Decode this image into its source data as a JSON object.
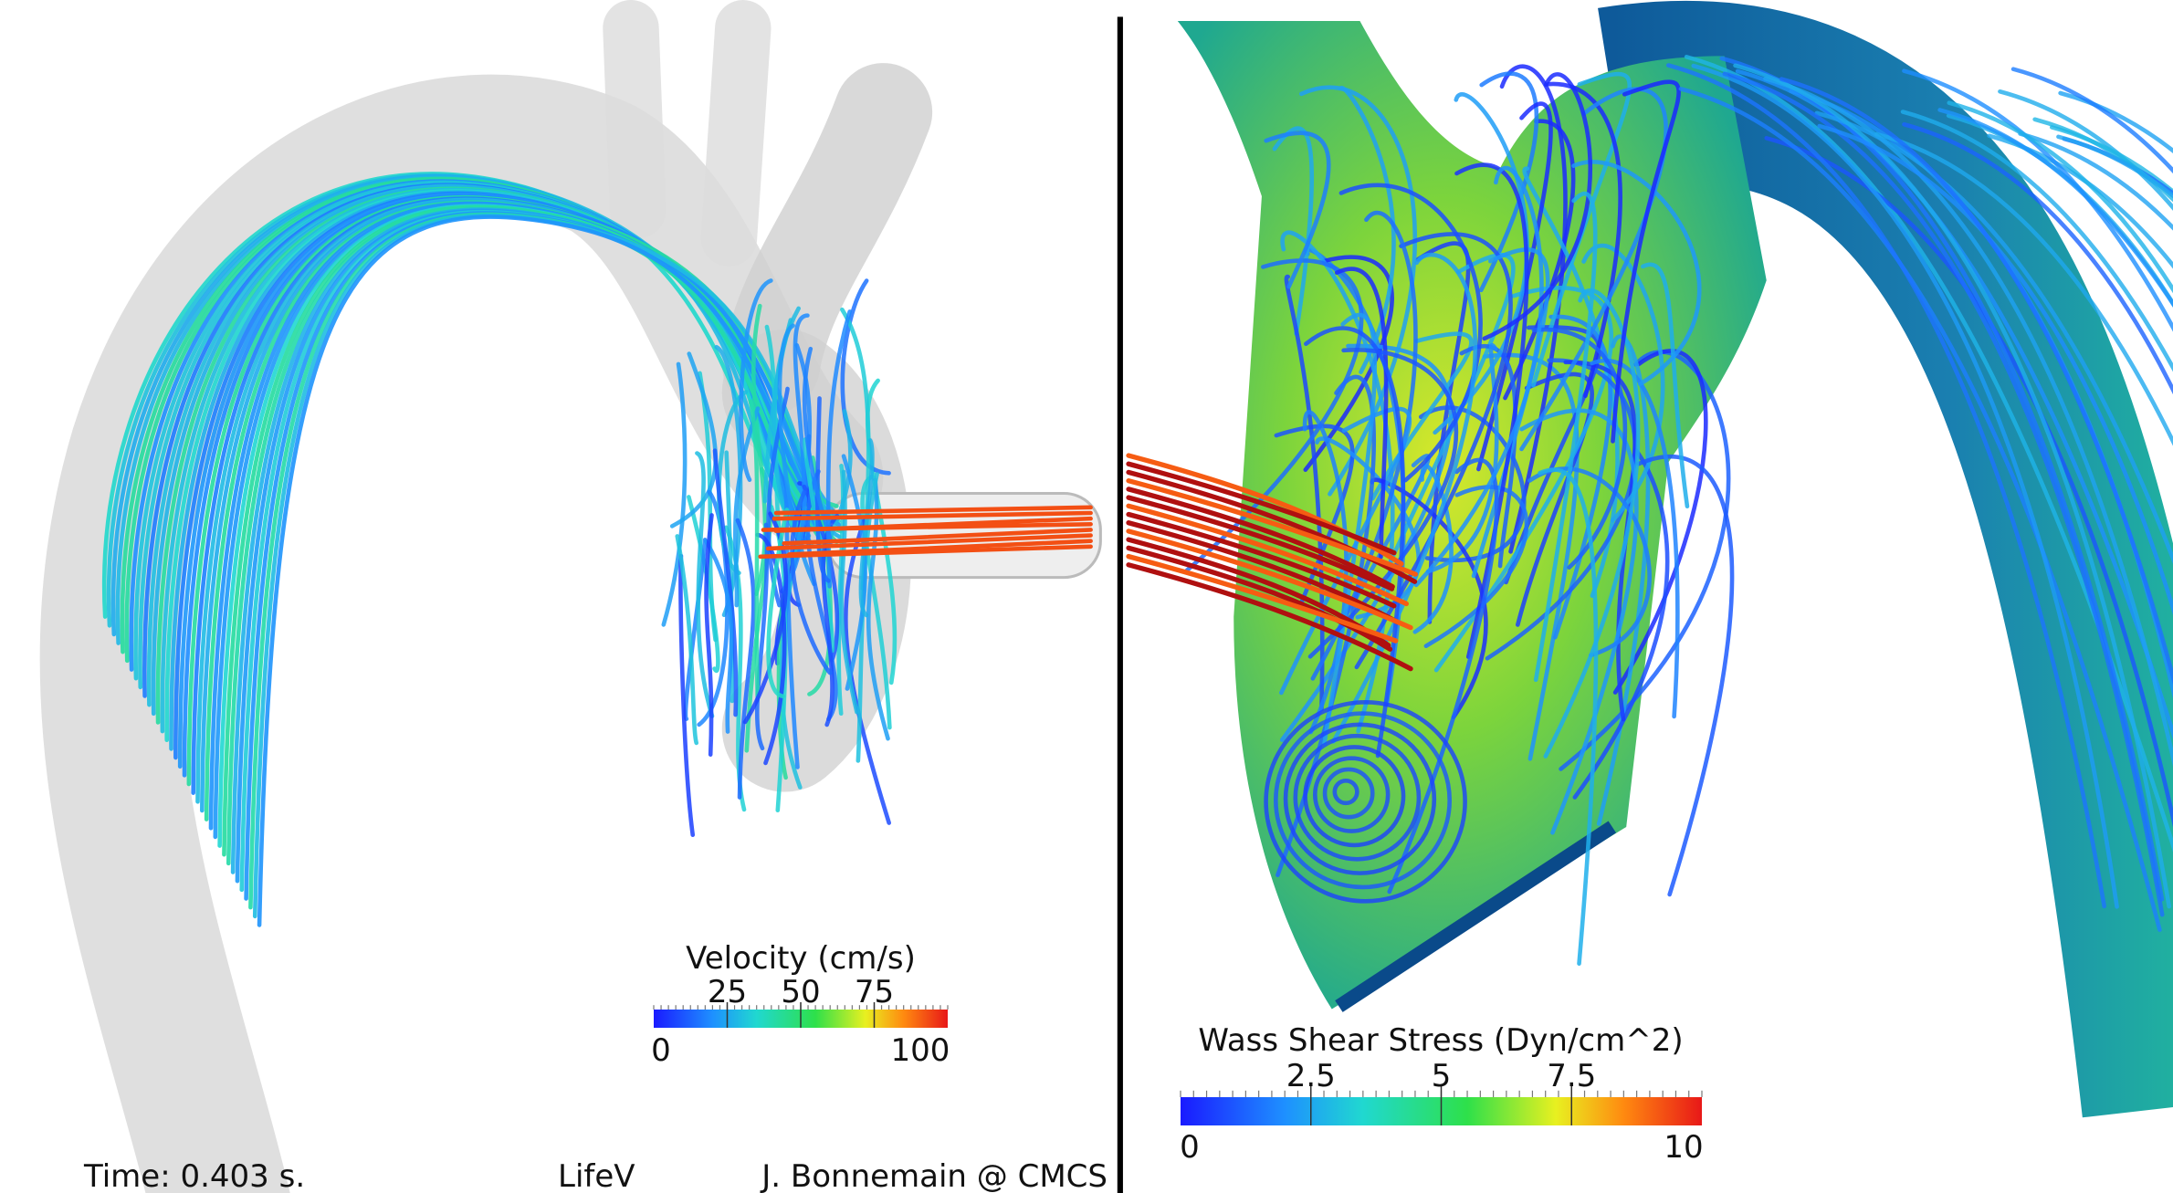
{
  "colorbars": [
    {
      "title": "Velocity (cm/s)",
      "lim": [
        0,
        100
      ],
      "ticks": [
        25,
        50,
        75
      ]
    },
    {
      "title": "Wass Shear Stress (Dyn/cm^2)",
      "lim": [
        0,
        10
      ],
      "ticks": [
        2.5,
        5,
        7.5
      ]
    }
  ],
  "footer": {
    "time": "Time: 0.403 s.",
    "software": "LifeV",
    "credit": "J. Bonnemain @ CMCS"
  }
}
